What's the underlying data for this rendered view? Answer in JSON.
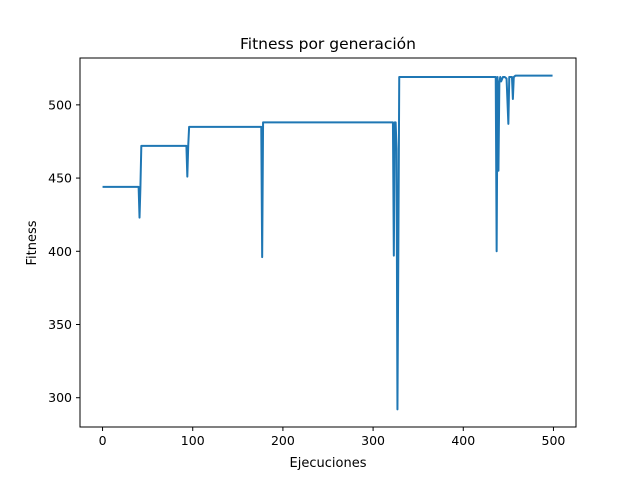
{
  "chart_data": {
    "type": "line",
    "title": "Fitness por generación",
    "xlabel": "Ejecuciones",
    "ylabel": "Fitness",
    "xlim": [
      -25,
      525
    ],
    "ylim": [
      280,
      532
    ],
    "xticks": [
      0,
      100,
      200,
      300,
      400,
      500
    ],
    "yticks": [
      300,
      350,
      400,
      450,
      500
    ],
    "grid": false,
    "series": [
      {
        "color": "#1f77b4",
        "points": [
          [
            0,
            444
          ],
          [
            40,
            444
          ],
          [
            41,
            423
          ],
          [
            42,
            444
          ],
          [
            43,
            472
          ],
          [
            93,
            472
          ],
          [
            94,
            451
          ],
          [
            95,
            472
          ],
          [
            96,
            485
          ],
          [
            175,
            485
          ],
          [
            176,
            485
          ],
          [
            177,
            396
          ],
          [
            178,
            488
          ],
          [
            320,
            488
          ],
          [
            322,
            488
          ],
          [
            323,
            397
          ],
          [
            324,
            488
          ],
          [
            325,
            488
          ],
          [
            326,
            470
          ],
          [
            327,
            292
          ],
          [
            328,
            400
          ],
          [
            329,
            519
          ],
          [
            436,
            519
          ],
          [
            437,
            400
          ],
          [
            438,
            519
          ],
          [
            439,
            455
          ],
          [
            440,
            515
          ],
          [
            441,
            519
          ],
          [
            442,
            516
          ],
          [
            444,
            519
          ],
          [
            446,
            519
          ],
          [
            448,
            518
          ],
          [
            450,
            487
          ],
          [
            451,
            519
          ],
          [
            454,
            519
          ],
          [
            455,
            504
          ],
          [
            456,
            519
          ],
          [
            458,
            520
          ],
          [
            499,
            520
          ]
        ]
      }
    ]
  }
}
